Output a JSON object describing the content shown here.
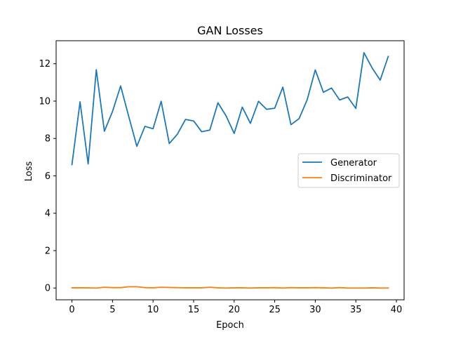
{
  "chart_data": {
    "type": "line",
    "title": "GAN Losses",
    "xlabel": "Epoch",
    "ylabel": "Loss",
    "xlim": [
      -1.95,
      40.95
    ],
    "ylim": [
      -0.63,
      13.23
    ],
    "xticks": [
      0,
      5,
      10,
      15,
      20,
      25,
      30,
      35,
      40
    ],
    "yticks": [
      0,
      2,
      4,
      6,
      8,
      10,
      12
    ],
    "grid": false,
    "legend_position": "center-right",
    "x": [
      0,
      1,
      2,
      3,
      4,
      5,
      6,
      7,
      8,
      9,
      10,
      11,
      12,
      13,
      14,
      15,
      16,
      17,
      18,
      19,
      20,
      21,
      22,
      23,
      24,
      25,
      26,
      27,
      28,
      29,
      30,
      31,
      32,
      33,
      34,
      35,
      36,
      37,
      38,
      39
    ],
    "series": [
      {
        "name": "Generator",
        "color": "#1f77b4",
        "values": [
          6.6,
          9.96,
          6.64,
          11.68,
          8.39,
          9.44,
          10.81,
          9.18,
          7.58,
          8.65,
          8.52,
          9.99,
          7.73,
          8.23,
          9.02,
          8.94,
          8.36,
          8.45,
          9.91,
          9.21,
          8.27,
          9.68,
          8.81,
          9.99,
          9.56,
          9.62,
          10.75,
          8.74,
          9.06,
          10.07,
          11.67,
          10.47,
          10.7,
          10.06,
          10.22,
          9.61,
          12.59,
          11.78,
          11.12,
          12.39
        ]
      },
      {
        "name": "Discriminator",
        "color": "#ff7f0e",
        "values": [
          0.01,
          0.01,
          0.01,
          0.0,
          0.04,
          0.02,
          0.02,
          0.07,
          0.07,
          0.02,
          0.01,
          0.04,
          0.03,
          0.02,
          0.01,
          0.01,
          0.01,
          0.04,
          0.01,
          0.0,
          0.01,
          0.01,
          0.0,
          0.01,
          0.01,
          0.02,
          0.0,
          0.02,
          0.01,
          0.01,
          0.02,
          0.01,
          0.0,
          0.02,
          0.0,
          0.0,
          0.0,
          0.01,
          0.0,
          0.0
        ]
      }
    ]
  }
}
